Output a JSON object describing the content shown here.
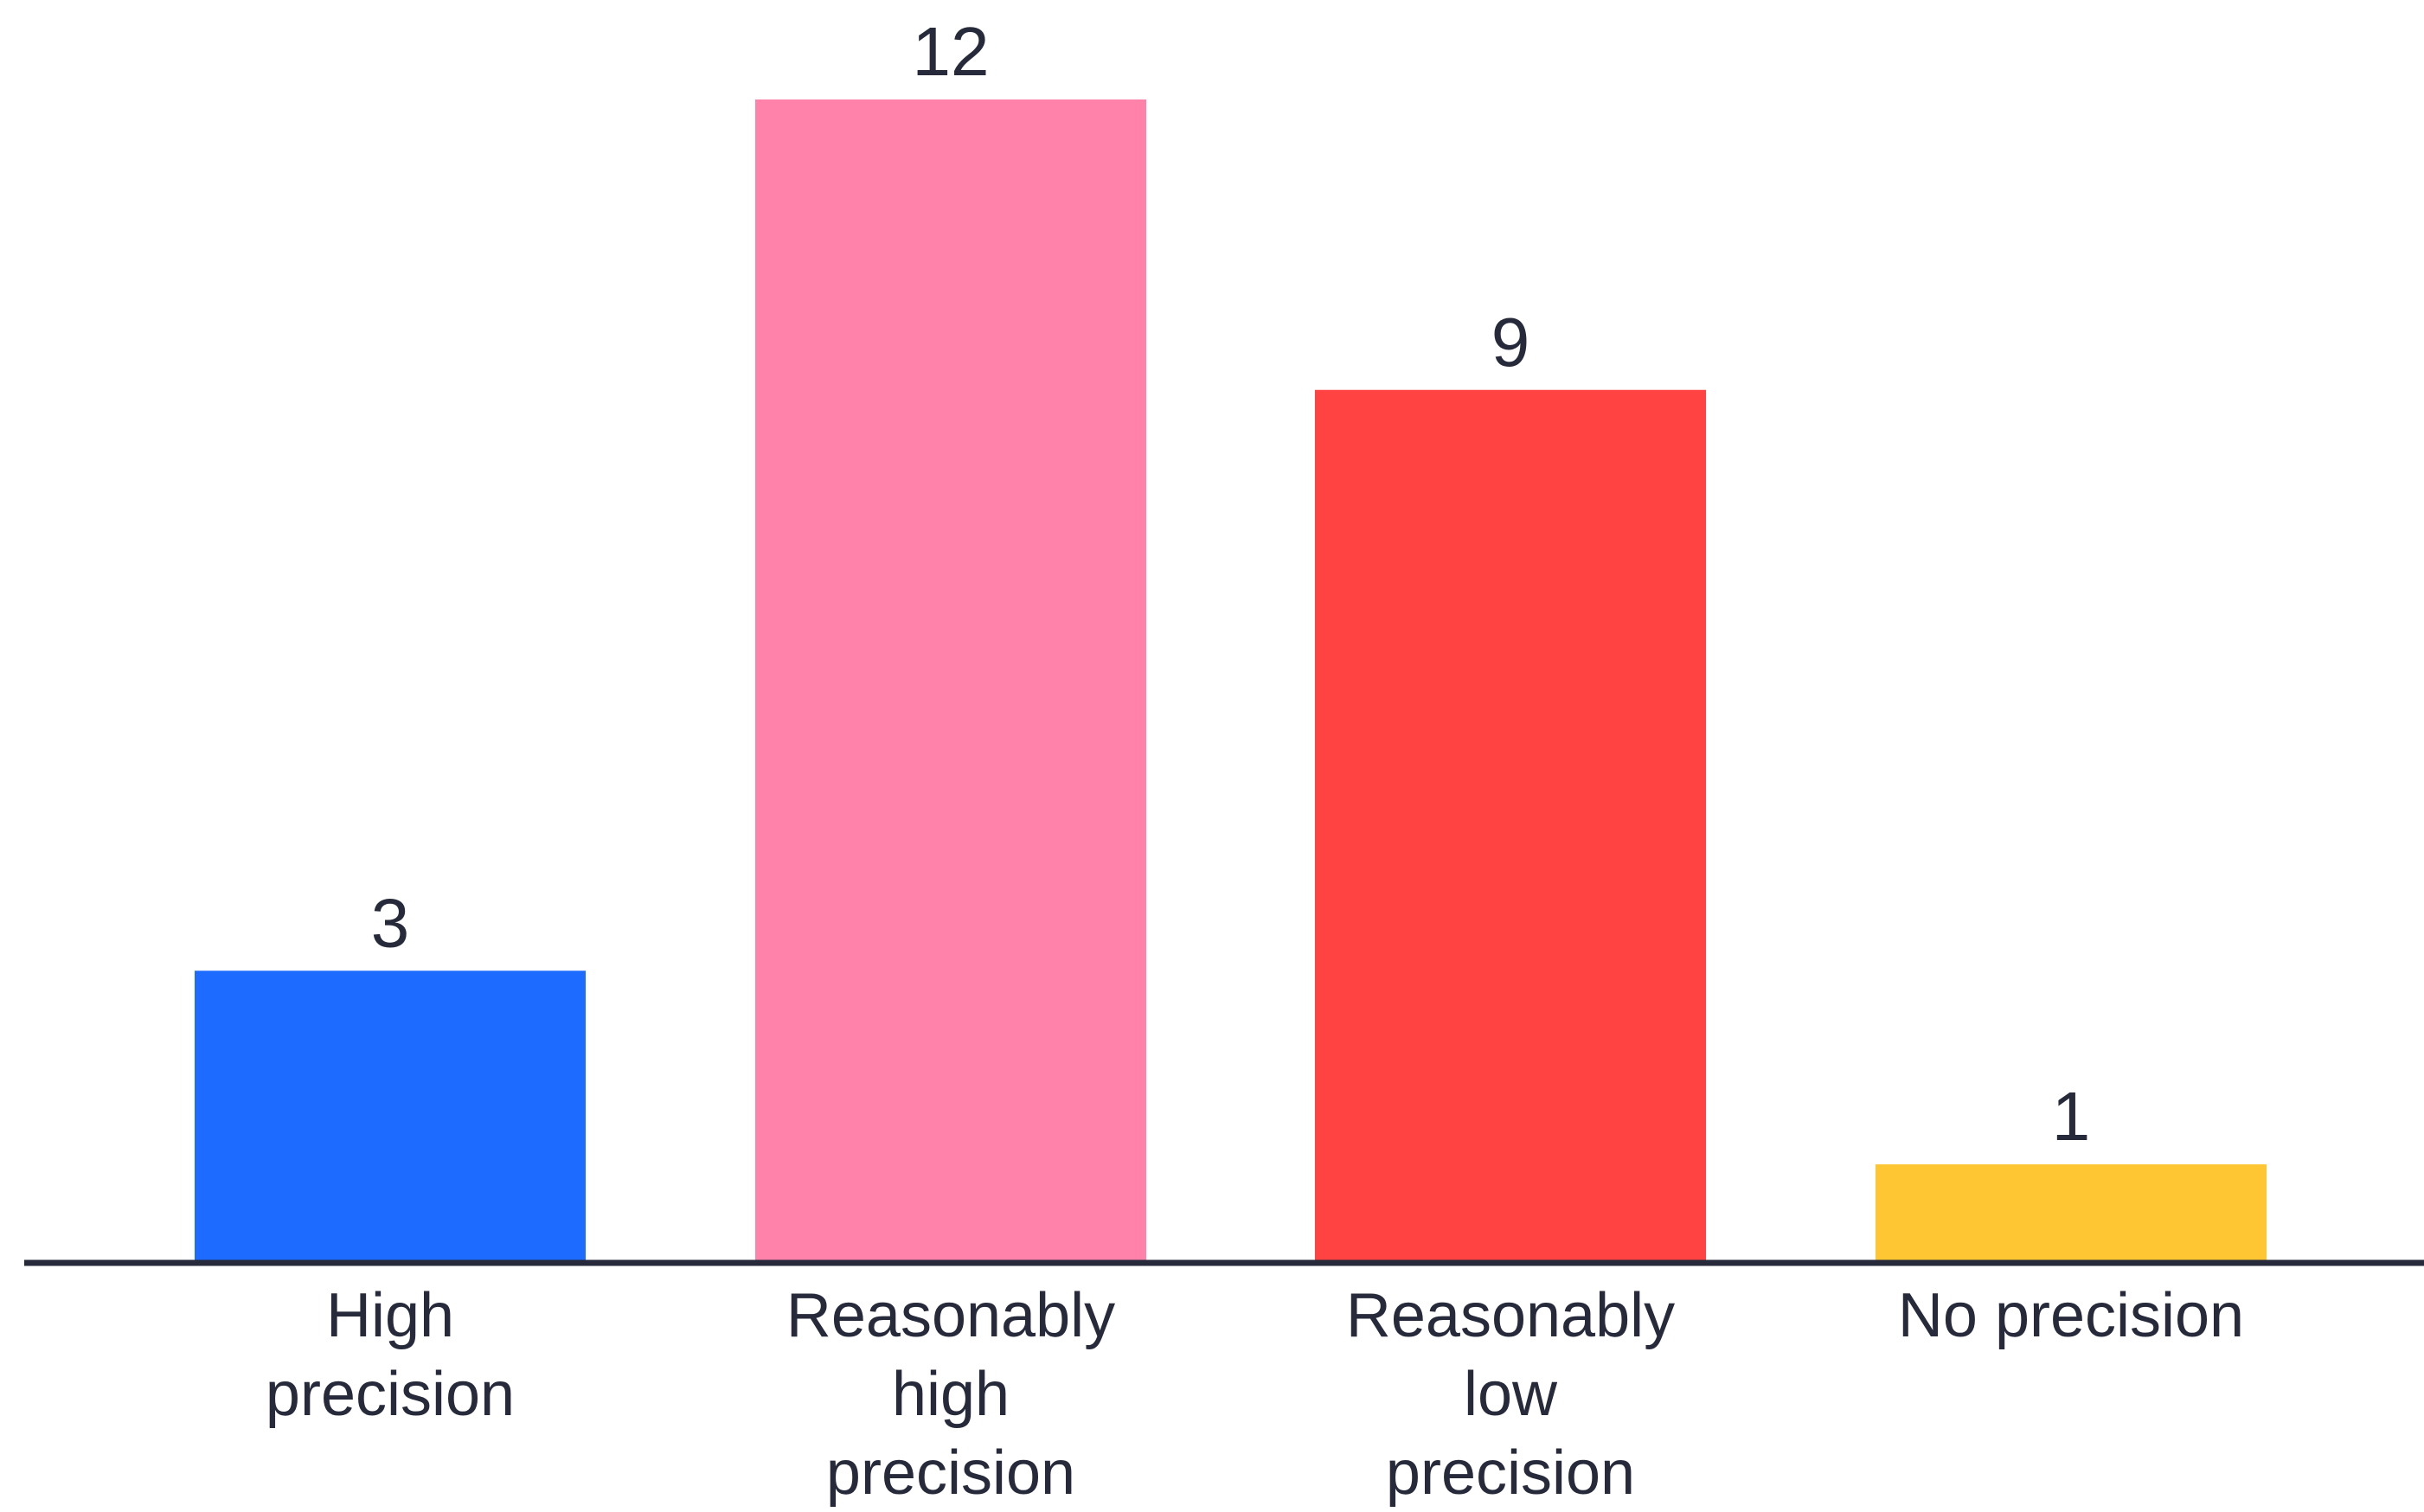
{
  "chart_data": {
    "type": "bar",
    "title": "",
    "xlabel": "",
    "ylabel": "",
    "ylim": [
      0,
      12
    ],
    "grid": false,
    "legend": "none",
    "categories": [
      "High precision",
      "Reasonably high precision",
      "Reasonably low precision",
      "No precision"
    ],
    "category_label_lines": [
      [
        "High",
        "precision"
      ],
      [
        "Reasonably",
        "high",
        "precision"
      ],
      [
        "Reasonably",
        "low",
        "precision"
      ],
      [
        "No precision"
      ]
    ],
    "values": [
      3,
      12,
      9,
      1
    ],
    "value_labels": [
      "3",
      "12",
      "9",
      "1"
    ],
    "colors": [
      "#1e6bff",
      "#ff82ab",
      "#ff4242",
      "#ffc634"
    ],
    "axis_color": "#262a3a",
    "text_color": "#262a3a"
  }
}
